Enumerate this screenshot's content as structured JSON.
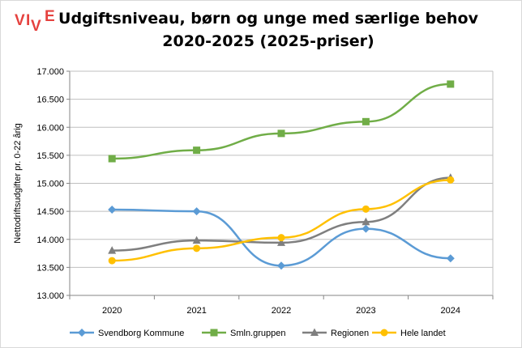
{
  "logo": {
    "text": "VIVE",
    "color": "#e5413e"
  },
  "header": {
    "line1": "Udgiftsniveau, børn og unge med særlige behov",
    "line2": "2020-2025 (2025-priser)"
  },
  "chart_data": {
    "type": "line",
    "title": "Udgiftsniveau, børn og unge med særlige behov 2020-2025 (2025-priser)",
    "xlabel": "",
    "ylabel": "Nettodriftsudgifter pr. 0-22 årig",
    "categories": [
      "2020",
      "2021",
      "2022",
      "2023",
      "2024"
    ],
    "ylim": [
      13000,
      17000
    ],
    "yticks": [
      13000,
      13500,
      14000,
      14500,
      15000,
      15500,
      16000,
      16500,
      17000
    ],
    "ytick_labels": [
      "13.000",
      "13.500",
      "14.000",
      "14.500",
      "15.000",
      "15.500",
      "16.000",
      "16.500",
      "17.000"
    ],
    "grid": "horizontal",
    "legend_position": "bottom",
    "series": [
      {
        "name": "Svendborg Kommune",
        "color": "#5b9bd5",
        "marker": "diamond",
        "values": [
          14530,
          14500,
          13530,
          14190,
          13660
        ]
      },
      {
        "name": "Smln.gruppen",
        "color": "#70ad47",
        "marker": "square",
        "values": [
          15440,
          15590,
          15890,
          16100,
          16770
        ]
      },
      {
        "name": "Regionen",
        "color": "#7f7f7f",
        "marker": "triangle",
        "values": [
          13800,
          13980,
          13940,
          14310,
          15100
        ]
      },
      {
        "name": "Hele landet",
        "color": "#ffc000",
        "marker": "circle",
        "values": [
          13620,
          13840,
          14030,
          14540,
          15060
        ]
      }
    ]
  }
}
